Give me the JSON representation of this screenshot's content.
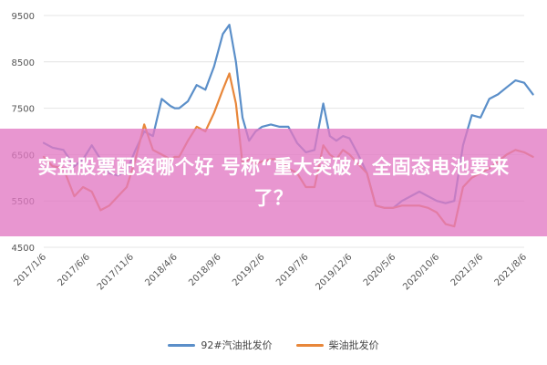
{
  "headline": "实盘股票配资哪个好 号称“重大突破” 全固态电池要来了？",
  "chart_data": {
    "type": "line",
    "ylim": [
      4500,
      9500
    ],
    "y_ticks": [
      "9500",
      "8500",
      "7500",
      "6500",
      "5500",
      "4500"
    ],
    "x_ticks": [
      "2017/1/6",
      "2017/6/6",
      "2017/11/6",
      "2018/4/6",
      "2018/9/6",
      "2019/2/6",
      "2019/7/6",
      "2019/12/6",
      "2020/5/6",
      "2020/10/6",
      "2021/3/6",
      "2021/8/6"
    ],
    "grid": "horizontal",
    "legend_position": "bottom",
    "series": [
      {
        "name": "92#汽油批发价",
        "color": "#5b8fc9",
        "t": [
          0,
          0.2,
          0.45,
          0.7,
          0.9,
          1.1,
          1.3,
          1.5,
          1.7,
          1.9,
          2.1,
          2.3,
          2.5,
          2.7,
          2.9,
          3.0,
          3.1,
          3.3,
          3.5,
          3.7,
          3.9,
          4.1,
          4.25,
          4.4,
          4.55,
          4.7,
          4.85,
          5.0,
          5.2,
          5.4,
          5.6,
          5.8,
          6.0,
          6.2,
          6.4,
          6.55,
          6.7,
          6.85,
          7.0,
          7.2,
          7.4,
          7.6,
          7.8,
          8.0,
          8.2,
          8.4,
          8.6,
          8.8,
          9.0,
          9.2,
          9.4,
          9.6,
          9.8,
          10.0,
          10.2,
          10.4,
          10.6,
          10.8,
          11.0,
          11.2
        ],
        "values": [
          6750,
          6650,
          6600,
          6250,
          6400,
          6700,
          6400,
          6100,
          6050,
          6150,
          6600,
          7000,
          6900,
          7700,
          7550,
          7500,
          7500,
          7650,
          8000,
          7900,
          8400,
          9100,
          9300,
          8500,
          7300,
          6800,
          7000,
          7100,
          7150,
          7100,
          7100,
          6750,
          6550,
          6600,
          7600,
          6900,
          6800,
          6900,
          6850,
          6500,
          6100,
          5400,
          5350,
          5350,
          5500,
          5600,
          5700,
          5600,
          5500,
          5450,
          5500,
          6700,
          7350,
          7300,
          7700,
          7800,
          7950,
          8100,
          8050,
          7800
        ]
      },
      {
        "name": "柴油批发价",
        "color": "#e8873a",
        "t": [
          0,
          0.2,
          0.45,
          0.7,
          0.9,
          1.1,
          1.3,
          1.5,
          1.7,
          1.9,
          2.1,
          2.3,
          2.5,
          2.7,
          2.9,
          3.0,
          3.1,
          3.3,
          3.5,
          3.7,
          3.9,
          4.1,
          4.25,
          4.4,
          4.55,
          4.7,
          4.85,
          5.0,
          5.2,
          5.4,
          5.6,
          5.8,
          6.0,
          6.2,
          6.4,
          6.55,
          6.7,
          6.85,
          7.0,
          7.2,
          7.4,
          7.6,
          7.8,
          8.0,
          8.2,
          8.4,
          8.6,
          8.8,
          9.0,
          9.2,
          9.4,
          9.6,
          9.8,
          10.0,
          10.2,
          10.4,
          10.6,
          10.8,
          11.0,
          11.2
        ],
        "values": [
          6450,
          6250,
          6200,
          5600,
          5800,
          5700,
          5300,
          5400,
          5600,
          5800,
          6400,
          7150,
          6600,
          6500,
          6400,
          6450,
          6450,
          6800,
          7100,
          7000,
          7400,
          7900,
          8250,
          7600,
          6300,
          6400,
          6300,
          6350,
          6400,
          6400,
          6200,
          6100,
          5800,
          5800,
          6700,
          6500,
          6400,
          6600,
          6500,
          6300,
          6100,
          5400,
          5350,
          5350,
          5400,
          5400,
          5400,
          5350,
          5250,
          5000,
          4950,
          5800,
          6000,
          6100,
          6200,
          6350,
          6500,
          6600,
          6550,
          6450
        ]
      }
    ]
  }
}
